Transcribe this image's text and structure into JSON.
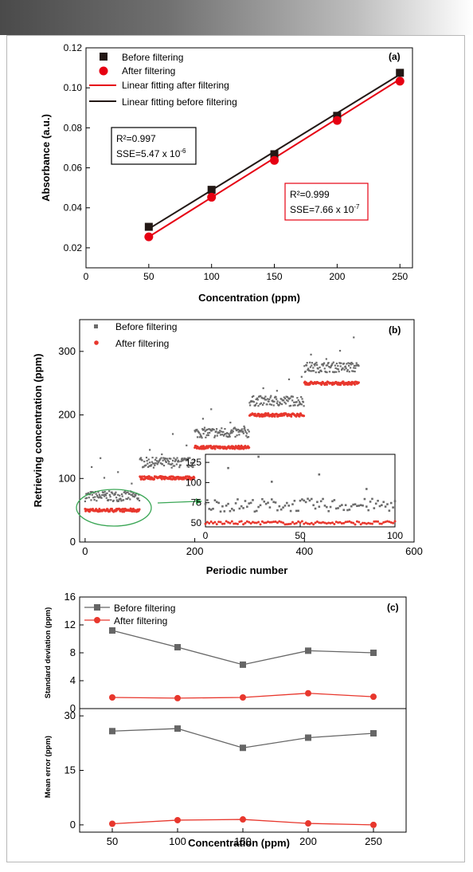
{
  "chart_data": [
    {
      "panel": "(a)",
      "type": "scatter",
      "xlabel": "Concentration (ppm)",
      "ylabel": "Absorbance (a.u.)",
      "xlim": [
        0,
        260
      ],
      "ylim": [
        0.01,
        0.12
      ],
      "xticks": [
        "0",
        "50",
        "100",
        "150",
        "200",
        "250"
      ],
      "yticks": [
        "0.02",
        "0.04",
        "0.06",
        "0.08",
        "0.10",
        "0.12"
      ],
      "x": [
        50,
        100,
        150,
        200,
        250
      ],
      "series": [
        {
          "name": "Before filtering",
          "marker": "square",
          "color": "#231815",
          "values": [
            0.0305,
            0.049,
            0.0668,
            0.086,
            0.1075
          ]
        },
        {
          "name": "After filtering",
          "marker": "circle",
          "color": "#e60012",
          "values": [
            0.0255,
            0.0453,
            0.0637,
            0.0837,
            0.1033
          ]
        }
      ],
      "fits": [
        {
          "name": "Linear fitting after filtering",
          "color": "#e60012",
          "from": [
            50,
            0.0255
          ],
          "to": [
            250,
            0.1043
          ]
        },
        {
          "name": "Linear fitting before filtering",
          "color": "#231815",
          "from": [
            50,
            0.0295
          ],
          "to": [
            250,
            0.1067
          ]
        }
      ],
      "annotations": {
        "before_r2": "R²=0.997",
        "before_sse_prefix": "SSE=5.47 x 10",
        "before_sse_exp": "-6",
        "after_r2": "R²=0.999",
        "after_sse_prefix": "SSE=7.66 x 10",
        "after_sse_exp": "-7"
      },
      "legend_position": "top-left"
    },
    {
      "panel": "(b)",
      "type": "scatter",
      "xlabel": "Periodic number",
      "ylabel": "Retrieving concentration (ppm)",
      "xlim": [
        -10,
        600
      ],
      "ylim": [
        0,
        350
      ],
      "xticks": [
        "0",
        "200",
        "400",
        "600"
      ],
      "yticks": [
        "0",
        "100",
        "200",
        "300"
      ],
      "groups": [
        {
          "x_range": [
            0,
            100
          ],
          "before_mean": 72,
          "before_outliers": [
            [
              12,
              118
            ],
            [
              28,
              132
            ],
            [
              35,
              101
            ],
            [
              60,
              110
            ],
            [
              85,
              92
            ]
          ],
          "after_mean": 50
        },
        {
          "x_range": [
            100,
            200
          ],
          "before_mean": 125,
          "before_outliers": [
            [
              118,
              145
            ],
            [
              140,
              138
            ],
            [
              160,
              170
            ],
            [
              185,
              152
            ]
          ],
          "after_mean": 101
        },
        {
          "x_range": [
            200,
            300
          ],
          "before_mean": 172,
          "before_outliers": [
            [
              215,
              194
            ],
            [
              230,
              209
            ],
            [
              265,
              188
            ],
            [
              290,
              182
            ]
          ],
          "after_mean": 149
        },
        {
          "x_range": [
            300,
            400
          ],
          "before_mean": 222,
          "before_outliers": [
            [
              325,
              242
            ],
            [
              350,
              238
            ],
            [
              372,
              256
            ],
            [
              395,
              260
            ]
          ],
          "after_mean": 200
        },
        {
          "x_range": [
            400,
            500
          ],
          "before_mean": 275,
          "before_outliers": [
            [
              412,
              295
            ],
            [
              440,
              288
            ],
            [
              465,
              301
            ],
            [
              490,
              322
            ]
          ],
          "after_mean": 250
        }
      ],
      "series": [
        {
          "name": "Before filtering",
          "color": "#6b6b6b"
        },
        {
          "name": "After filtering",
          "color": "#e8372d"
        }
      ],
      "inset": {
        "xlim": [
          0,
          100
        ],
        "ylim": [
          45,
          135
        ],
        "xticks": [
          "0",
          "50",
          "100"
        ],
        "yticks": [
          "50",
          "75",
          "100",
          "125"
        ]
      },
      "legend_position": "top-left"
    },
    {
      "panel": "(c)",
      "type": "line",
      "xlabel": "Concentration (ppm)",
      "xticks": [
        "50",
        "100",
        "150",
        "200",
        "250"
      ],
      "x": [
        50,
        100,
        150,
        200,
        250
      ],
      "top": {
        "ylabel": "Standard deviation (ppm)",
        "ylim": [
          0,
          16
        ],
        "yticks": [
          "0",
          "4",
          "8",
          "12",
          "16"
        ],
        "series": [
          {
            "name": "Before filtering",
            "marker": "square",
            "color": "#666666",
            "values": [
              11.2,
              8.8,
              6.3,
              8.3,
              8.0
            ]
          },
          {
            "name": "After filtering",
            "marker": "circle",
            "color": "#e8372d",
            "values": [
              1.6,
              1.5,
              1.6,
              2.2,
              1.7
            ]
          }
        ]
      },
      "bottom": {
        "ylabel": "Mean error (ppm)",
        "ylim": [
          -2,
          32
        ],
        "yticks": [
          "0",
          "15",
          "30"
        ],
        "series": [
          {
            "name": "Before filtering",
            "marker": "square",
            "color": "#666666",
            "values": [
              25.8,
              26.5,
              21.2,
              24.0,
              25.2
            ]
          },
          {
            "name": "After filtering",
            "marker": "circle",
            "color": "#e8372d",
            "values": [
              0.3,
              1.3,
              1.5,
              0.4,
              0.0
            ]
          }
        ]
      },
      "legend_position": "top-left"
    }
  ]
}
